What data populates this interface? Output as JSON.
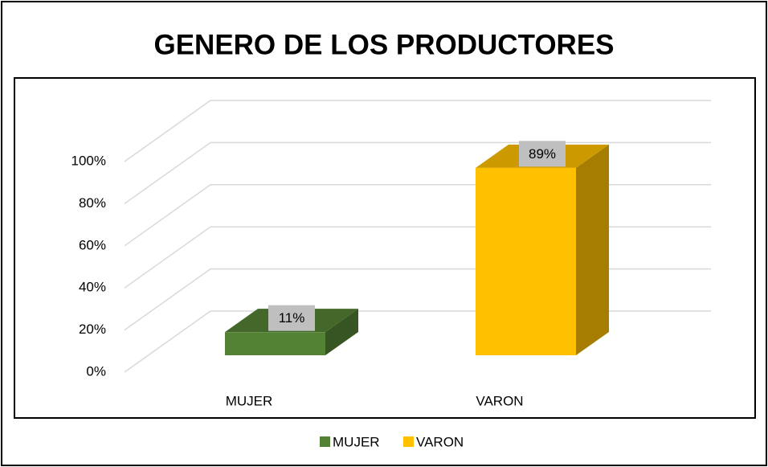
{
  "chart_data": {
    "type": "bar3d",
    "title": "GENERO DE LOS PRODUCTORES",
    "categories": [
      "MUJER",
      "VARON"
    ],
    "values": [
      11,
      89
    ],
    "value_labels": [
      "11%",
      "89%"
    ],
    "colors": [
      "#548235",
      "#ffc000"
    ],
    "ylim": [
      0,
      100
    ],
    "yticks": [
      {
        "value": 0,
        "label": "0%"
      },
      {
        "value": 20,
        "label": "20%"
      },
      {
        "value": 40,
        "label": "40%"
      },
      {
        "value": 60,
        "label": "60%"
      },
      {
        "value": 80,
        "label": "80%"
      },
      {
        "value": 100,
        "label": "100%"
      }
    ],
    "grid": true,
    "legend": "bottom"
  }
}
